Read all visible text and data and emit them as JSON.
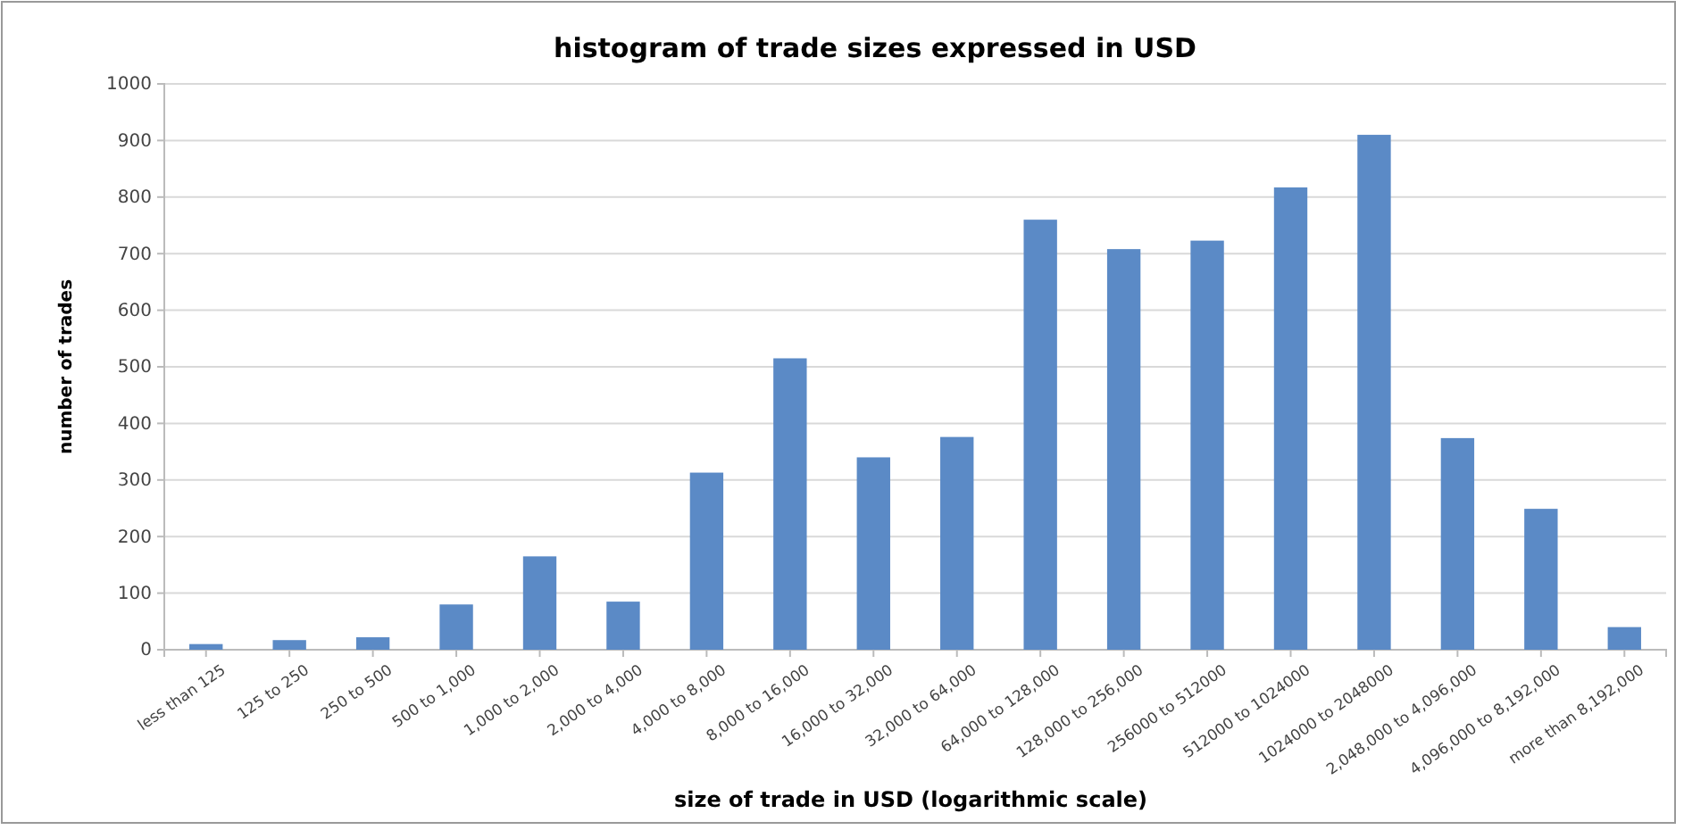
{
  "chart_data": {
    "type": "bar",
    "title": "histogram of trade sizes expressed in USD",
    "xlabel": "size of trade in USD (logarithmic scale)",
    "ylabel": "number of trades",
    "categories": [
      "less than 125",
      "125 to 250",
      "250 to 500",
      "500 to 1,000",
      "1,000 to 2,000",
      "2,000 to 4,000",
      "4,000 to 8,000",
      "8,000 to 16,000",
      "16,000 to 32,000",
      "32,000 to 64,000",
      "64,000 to 128,000",
      "128,000 to 256,000",
      "256000 to 512000",
      "512000 to 1024000",
      "1024000 to 2048000",
      "2,048,000 to 4,096,000",
      "4,096,000 to 8,192,000",
      "more than 8,192,000"
    ],
    "values": [
      10,
      17,
      22,
      80,
      165,
      85,
      313,
      515,
      340,
      376,
      760,
      708,
      723,
      817,
      910,
      374,
      249,
      40
    ],
    "color": "#5b8ac6",
    "ylim": [
      0,
      1000
    ],
    "yticks": [
      0,
      100,
      200,
      300,
      400,
      500,
      600,
      700,
      800,
      900,
      1000
    ],
    "grid": "y"
  }
}
